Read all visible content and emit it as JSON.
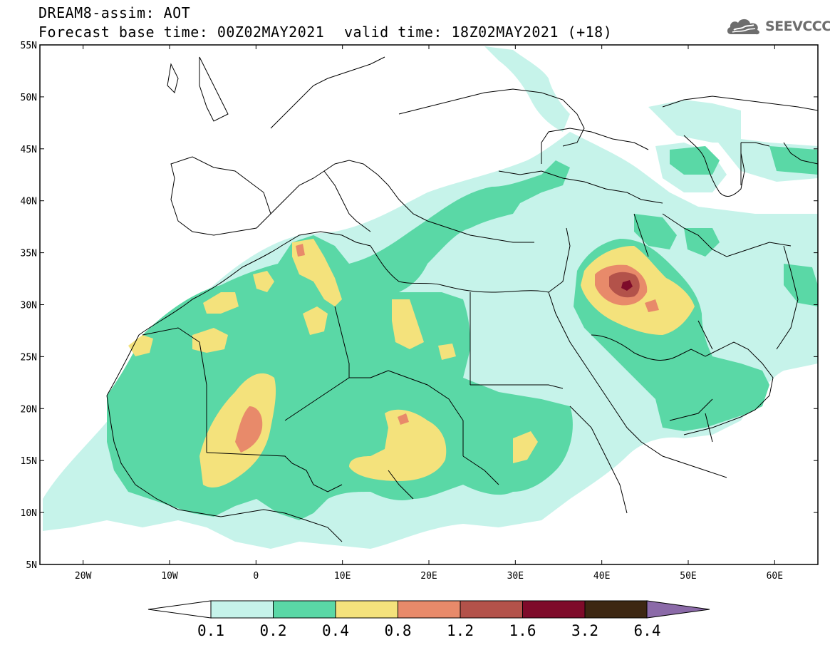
{
  "header": {
    "line1": "DREAM8-assim: AOT",
    "line2": "Forecast base time: 00Z02MAY2021",
    "valid": "valid time: 18Z02MAY2021 (+18)"
  },
  "logo": {
    "text": "SEEVCCC",
    "icon": "cloud-icon",
    "color": "#6d6d6d"
  },
  "map": {
    "lon_range": [
      -25,
      65
    ],
    "lat_range": [
      5,
      55
    ],
    "lat_ticks": [
      "5N",
      "10N",
      "15N",
      "20N",
      "25N",
      "30N",
      "35N",
      "40N",
      "45N",
      "50N",
      "55N"
    ],
    "lon_ticks": [
      "20W",
      "10W",
      "0",
      "10E",
      "20E",
      "30E",
      "40E",
      "50E",
      "60E"
    ]
  },
  "colorbar": {
    "labels": [
      "0.1",
      "0.2",
      "0.4",
      "0.8",
      "1.2",
      "1.6",
      "3.2",
      "6.4"
    ],
    "colors": [
      "#c6f3ea",
      "#5ad8a6",
      "#f4e27c",
      "#e88a6a",
      "#b3524a",
      "#7e0b2a",
      "#3d2712",
      "#8b6aa8"
    ],
    "under_color": "#ffffff"
  }
}
